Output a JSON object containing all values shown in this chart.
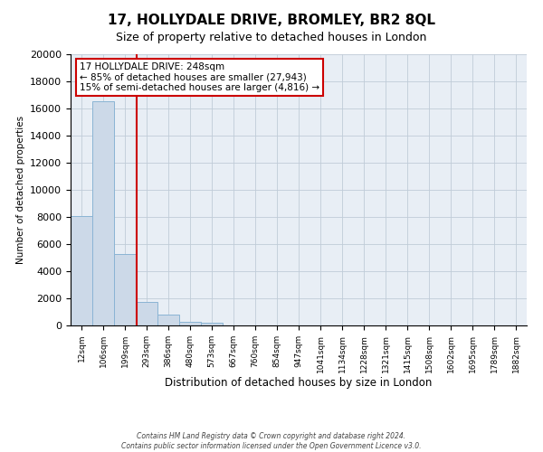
{
  "title": "17, HOLLYDALE DRIVE, BROMLEY, BR2 8QL",
  "subtitle": "Size of property relative to detached houses in London",
  "xlabel": "Distribution of detached houses by size in London",
  "ylabel": "Number of detached properties",
  "bar_labels": [
    "12sqm",
    "106sqm",
    "199sqm",
    "293sqm",
    "386sqm",
    "480sqm",
    "573sqm",
    "667sqm",
    "760sqm",
    "854sqm",
    "947sqm",
    "1041sqm",
    "1134sqm",
    "1228sqm",
    "1321sqm",
    "1415sqm",
    "1508sqm",
    "1602sqm",
    "1695sqm",
    "1789sqm",
    "1882sqm"
  ],
  "bar_values": [
    8100,
    16500,
    5300,
    1750,
    800,
    250,
    200,
    0,
    0,
    0,
    0,
    0,
    0,
    0,
    0,
    0,
    0,
    0,
    0,
    0,
    0
  ],
  "bar_color": "#ccd9e8",
  "bar_edge_color": "#8ab4d4",
  "vline_x": 2.55,
  "vline_color": "#cc0000",
  "ylim": [
    0,
    20000
  ],
  "yticks": [
    0,
    2000,
    4000,
    6000,
    8000,
    10000,
    12000,
    14000,
    16000,
    18000,
    20000
  ],
  "annotation_line1": "17 HOLLYDALE DRIVE: 248sqm",
  "annotation_line2": "← 85% of detached houses are smaller (27,943)",
  "annotation_line3": "15% of semi-detached houses are larger (4,816) →",
  "footer_line1": "Contains HM Land Registry data © Crown copyright and database right 2024.",
  "footer_line2": "Contains public sector information licensed under the Open Government Licence v3.0.",
  "background_color": "#ffffff",
  "plot_bg_color": "#e8eef5",
  "grid_color": "#c0ccd8",
  "title_fontsize": 11,
  "subtitle_fontsize": 9
}
